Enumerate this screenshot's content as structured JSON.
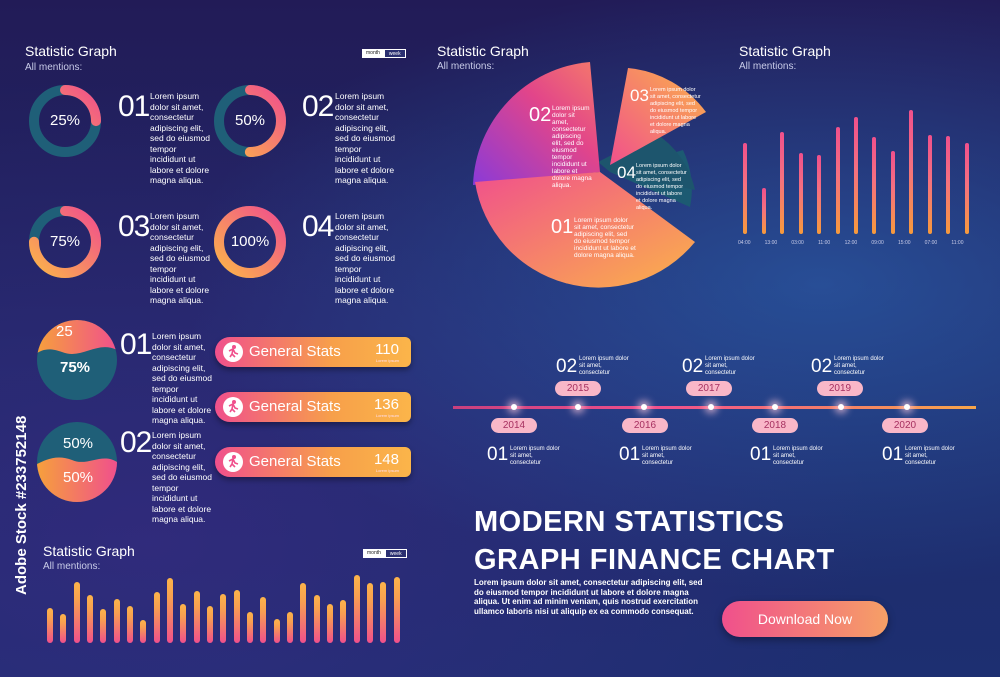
{
  "card1": {
    "title": "Statistic Graph",
    "subtitle": "All mentions:",
    "toggle": [
      "month",
      "week"
    ]
  },
  "donuts": [
    {
      "pct": "25%",
      "value": 0.25,
      "num": "01",
      "text": "Lorem ipsum dolor sit amet, consectetur adipiscing elit, sed do eiusmod tempor incididunt ut labore et dolore magna aliqua."
    },
    {
      "pct": "50%",
      "value": 0.5,
      "num": "02",
      "text": "Lorem ipsum dolor sit amet, consectetur adipiscing elit, sed do eiusmod tempor incididunt ut labore et dolore magna aliqua."
    },
    {
      "pct": "75%",
      "value": 0.75,
      "num": "03",
      "text": "Lorem ipsum dolor sit amet, consectetur adipiscing elit, sed do eiusmod tempor incididunt ut labore et dolore magna aliqua."
    },
    {
      "pct": "100%",
      "value": 1.0,
      "num": "04",
      "text": "Lorem ipsum dolor sit amet, consectetur adipiscing elit, sed do eiusmod tempor incididunt ut labore et dolore magna aliqua."
    }
  ],
  "splits": [
    {
      "top": "25",
      "bottom": "75%",
      "num": "01",
      "text": "Lorem ipsum dolor sit amet, consectetur adipiscing elit, sed do eiusmod tempor incididunt ut labore et dolore magna aliqua."
    },
    {
      "top": "50%",
      "bottom": "50%",
      "num": "02",
      "text": "Lorem ipsum dolor sit amet, consectetur adipiscing elit, sed do eiusmod tempor incididunt ut labore et dolore magna aliqua."
    }
  ],
  "stats": [
    {
      "label": "General Stats",
      "value": "110",
      "small": "Lorem ipsum"
    },
    {
      "label": "General Stats",
      "value": "136",
      "small": "Lorem ipsum"
    },
    {
      "label": "General Stats",
      "value": "148",
      "small": "Lorem ipsum"
    }
  ],
  "card2": {
    "title": "Statistic Graph",
    "subtitle": "All mentions:",
    "toggle": [
      "month",
      "week"
    ]
  },
  "card3": {
    "title": "Statistic Graph",
    "subtitle": "All mentions:"
  },
  "pie": [
    {
      "num": "01",
      "text": "Lorem ipsum dolor sit amet, consectetur adipiscing elit, sed do eiusmod tempor incididunt ut labore et dolore magna aliqua."
    },
    {
      "num": "02",
      "text": "Lorem ipsum dolor sit amet, consectetur adipiscing elit, sed do eiusmod tempor incididunt ut labore et dolore magna aliqua."
    },
    {
      "num": "03",
      "text": "Lorem ipsum dolor sit amet, consectetur adipiscing elit, sed do eiusmod tempor incididunt ut labore et dolore magna aliqua."
    },
    {
      "num": "04",
      "text": "Lorem ipsum dolor sit amet, consectetur adipiscing elit, sed do eiusmod tempor incididunt ut labore et dolore magna aliqua."
    }
  ],
  "card4": {
    "title": "Statistic Graph",
    "subtitle": "All mentions:"
  },
  "chart_data": [
    {
      "type": "bar",
      "title": "Statistic Graph",
      "series": [
        {
          "values": [
            0.73,
            0.37,
            0.82,
            0.65,
            0.64,
            0.86,
            0.94,
            0.78,
            0.67,
            1.0,
            0.8,
            0.79,
            0.73
          ]
        }
      ],
      "tick_labels": [
        "04:00",
        "13:00",
        "03:00",
        "11:00",
        "12:00",
        "09:00",
        "15:00",
        "07:00",
        "11:00"
      ]
    },
    {
      "type": "bar",
      "title": "Statistic Graph",
      "series": [
        {
          "values": [
            0.52,
            0.43,
            0.9,
            0.7,
            0.5,
            0.65,
            0.55,
            0.34,
            0.75,
            0.95,
            0.58,
            0.76,
            0.55,
            0.72,
            0.78,
            0.45,
            0.67,
            0.35,
            0.46,
            0.88,
            0.7,
            0.58,
            0.63,
            1.0,
            0.88,
            0.9,
            0.97
          ]
        }
      ]
    }
  ],
  "timeline": {
    "top": [
      {
        "num": "02",
        "text": "Lorem ipsum dolor sit amet, consectetur",
        "year": "2015"
      },
      {
        "num": "02",
        "text": "Lorem ipsum dolor sit amet, consectetur",
        "year": "2017"
      },
      {
        "num": "02",
        "text": "Lorem ipsum dolor sit amet, consectetur",
        "year": "2019"
      }
    ],
    "bottom": [
      {
        "num": "01",
        "text": "Lorem ipsum dolor sit amet, consectetur",
        "year": "2014"
      },
      {
        "num": "01",
        "text": "Lorem ipsum dolor sit amet, consectetur",
        "year": "2016"
      },
      {
        "num": "01",
        "text": "Lorem ipsum dolor sit amet, consectetur",
        "year": "2018"
      },
      {
        "num": "01",
        "text": "Lorem ipsum dolor sit amet, consectetur",
        "year": "2020"
      }
    ]
  },
  "promo": {
    "line1": "MODERN STATISTICS",
    "line2": "GRAPH FINANCE CHART",
    "body": "Lorem ipsum dolor sit amet, consectetur adipiscing elit, sed do eiusmod tempor incididunt ut labore et dolore magna aliqua. Ut enim ad minim veniam, quis nostrud exercitation ullamco laboris nisi ut aliquip ex ea commodo consequat.",
    "button": "Download Now"
  },
  "watermark": {
    "side": "#233752148",
    "side2": "Adobe Stock"
  },
  "colors": {
    "pink": "#f0508c",
    "orange": "#f8a050",
    "teal": "#1f5f78",
    "bg": "#221b57"
  }
}
